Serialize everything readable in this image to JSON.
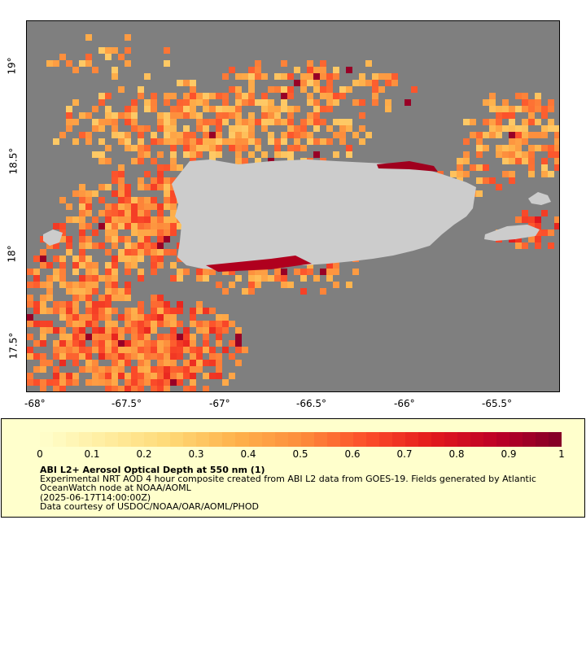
{
  "map": {
    "lon_labels": [
      "-68°",
      "-67.5°",
      "-67°",
      "-66.5°",
      "-66°",
      "-65.5°"
    ],
    "lat_labels": [
      "19°",
      "18.5°",
      "18°",
      "17.5°"
    ],
    "colors": {
      "ocean": "#7f7f7f",
      "land": "#cccccc"
    }
  },
  "legend": {
    "scale_labels": [
      "0",
      "0.1",
      "0.2",
      "0.3",
      "0.4",
      "0.5",
      "0.6",
      "0.7",
      "0.8",
      "0.9",
      "1"
    ],
    "title": "ABI L2+ Aerosol Optical Depth at 550 nm (1)",
    "description": "Experimental NRT AOD 4 hour composite created from ABI L2 data from GOES-19. Fields generated by Atlantic OceanWatch node at NOAA/AOML",
    "timestamp": "(2025-06-17T14:00:00Z)",
    "credit": "Data courtesy of USDOC/NOAA/OAR/AOML/PHOD",
    "colors": [
      "#ffffcc",
      "#ffeda0",
      "#fed976",
      "#feb24c",
      "#fd8d3c",
      "#fc4e2a",
      "#e31a1c",
      "#bd0026",
      "#800026"
    ]
  }
}
